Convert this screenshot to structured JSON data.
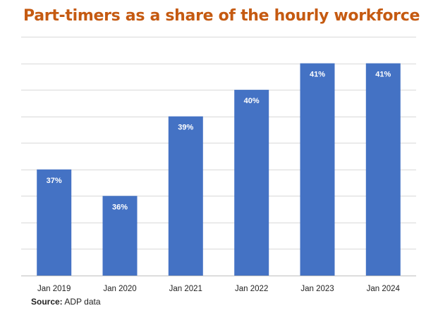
{
  "colors": {
    "title": "#c55a11",
    "bar": "#4472c4",
    "gridline": "#d9d9d9",
    "axis": "#bfbfbf"
  },
  "chart_data": {
    "type": "bar",
    "title": "Part-timers as a share of the hourly workforce",
    "xlabel": "",
    "ylabel": "",
    "categories": [
      "Jan 2019",
      "Jan 2020",
      "Jan 2021",
      "Jan 2022",
      "Jan 2023",
      "Jan 2024"
    ],
    "values": [
      37,
      36,
      39,
      40,
      41,
      41
    ],
    "data_labels": [
      "37%",
      "36%",
      "39%",
      "40%",
      "41%",
      "41%"
    ],
    "unit": "%",
    "ylim": [
      33,
      42
    ],
    "grid": true,
    "legend": "none"
  },
  "source": {
    "label": "Source:",
    "text": " ADP data"
  }
}
